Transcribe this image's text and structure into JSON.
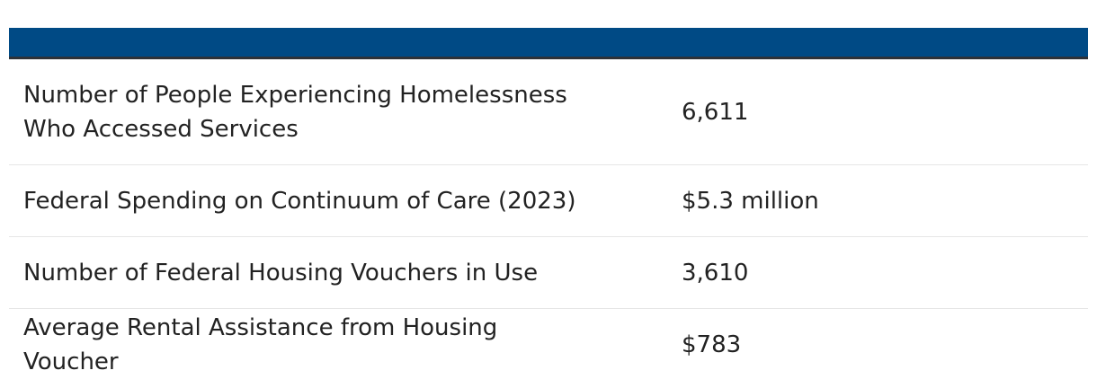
{
  "table": {
    "rows": [
      {
        "label": "Number of People Experiencing Homelessness Who Accessed Services",
        "value": "6,611"
      },
      {
        "label": "Federal Spending on Continuum of Care (2023)",
        "value": "$5.3 million"
      },
      {
        "label": "Number of Federal Housing Vouchers in Use",
        "value": "3,610"
      },
      {
        "label": "Average Rental Assistance from Housing Voucher",
        "value": "$783"
      }
    ]
  },
  "colors": {
    "header": "#004a85",
    "header_border": "#2e3238",
    "row_divider": "#e6e6e6",
    "text": "#222222"
  }
}
